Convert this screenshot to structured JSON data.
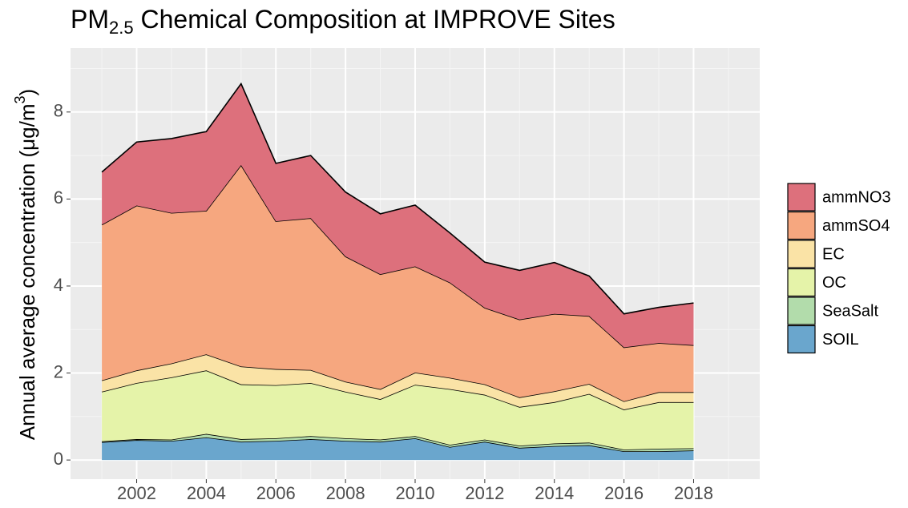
{
  "chart_data": {
    "type": "area",
    "stacked": true,
    "title": [
      "PM",
      "2.5",
      " Chemical Composition at IMPROVE Sites"
    ],
    "y_label": [
      "Annual average concentration (μg/m",
      "3",
      ")"
    ],
    "x": [
      2001,
      2002,
      2003,
      2004,
      2005,
      2006,
      2007,
      2008,
      2009,
      2010,
      2011,
      2012,
      2013,
      2014,
      2015,
      2016,
      2017,
      2018
    ],
    "series": [
      {
        "name": "SOIL",
        "color": "#6aa6cd",
        "values": [
          0.41,
          0.46,
          0.44,
          0.52,
          0.42,
          0.44,
          0.48,
          0.44,
          0.42,
          0.5,
          0.3,
          0.42,
          0.28,
          0.32,
          0.34,
          0.2,
          0.2,
          0.22
        ]
      },
      {
        "name": "SeaSalt",
        "color": "#b2dcab",
        "values": [
          0.02,
          0.02,
          0.03,
          0.08,
          0.06,
          0.06,
          0.07,
          0.06,
          0.05,
          0.05,
          0.05,
          0.05,
          0.05,
          0.06,
          0.06,
          0.04,
          0.06,
          0.05
        ]
      },
      {
        "name": "OC",
        "color": "#e5f3a9",
        "values": [
          1.14,
          1.29,
          1.43,
          1.46,
          1.26,
          1.22,
          1.22,
          1.07,
          0.93,
          1.18,
          1.28,
          1.03,
          0.89,
          0.95,
          1.12,
          0.92,
          1.07,
          1.06
        ]
      },
      {
        "name": "EC",
        "color": "#fae3a6",
        "values": [
          0.26,
          0.29,
          0.32,
          0.37,
          0.41,
          0.37,
          0.3,
          0.23,
          0.23,
          0.28,
          0.26,
          0.24,
          0.22,
          0.25,
          0.23,
          0.19,
          0.23,
          0.23
        ]
      },
      {
        "name": "ammSO4",
        "color": "#f6a77f",
        "values": [
          3.58,
          3.79,
          3.46,
          3.3,
          4.63,
          3.4,
          3.49,
          2.88,
          2.64,
          2.44,
          2.19,
          1.76,
          1.79,
          1.78,
          1.56,
          1.24,
          1.13,
          1.08
        ]
      },
      {
        "name": "ammNO3",
        "color": "#dd707c",
        "values": [
          1.21,
          1.46,
          1.71,
          1.82,
          1.87,
          1.33,
          1.44,
          1.48,
          1.39,
          1.41,
          1.14,
          1.05,
          1.13,
          1.18,
          0.92,
          0.77,
          0.82,
          0.97
        ]
      }
    ],
    "xlim": [
      2000.1,
      2019.9
    ],
    "xticks": [
      2002,
      2004,
      2006,
      2008,
      2010,
      2012,
      2014,
      2016,
      2018
    ],
    "ylim": [
      -0.44,
      9.47
    ],
    "yticks": [
      0,
      2,
      4,
      6,
      8
    ],
    "grid": true,
    "legend": "right"
  }
}
